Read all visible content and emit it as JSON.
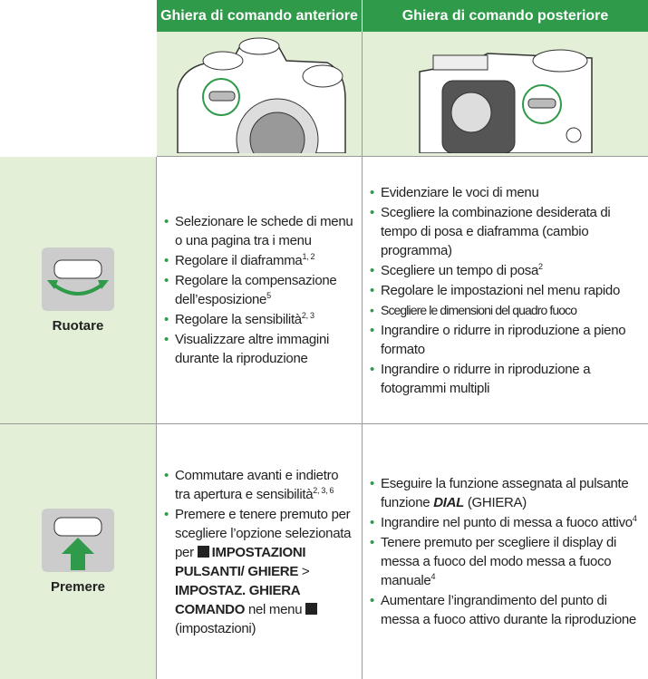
{
  "header": {
    "col1": "Ghiera di comando anteriore",
    "col2": "Ghiera di comando posteriore"
  },
  "rows": [
    {
      "label": "Ruotare",
      "col1": [
        [
          "Selezionare le schede di menu o una pagina tra i menu"
        ],
        [
          "Regolare il diaframma",
          "1, 2"
        ],
        [
          "Regolare la compensazione dell’esposizione",
          "5"
        ],
        [
          "Regolare la sensibilità",
          "2, 3"
        ],
        [
          "Visualizzare altre immagini durante la riproduzione"
        ]
      ],
      "col2": [
        [
          "Evidenziare le voci di menu"
        ],
        [
          "Scegliere la combinazione desiderata di tempo di posa e diaframma (cambio programma)"
        ],
        [
          "Scegliere un tempo di posa",
          "2"
        ],
        [
          "Regolare le impostazioni nel menu rapido"
        ],
        [
          "Scegliere le dimensioni del quadro fuoco"
        ],
        [
          "Ingrandire o ridurre in riproduzione a pieno formato"
        ],
        [
          "Ingrandire o ridurre in riproduzione a fotogrammi multipli"
        ]
      ]
    },
    {
      "label": "Premere",
      "col1": [
        [
          "Commutare avanti e indietro tra apertura e sensibilità",
          "2, 3, 6"
        ],
        [
          "Premere e tenere premuto per scegliere l’opzione selezionata per",
          "IMPOSTAZIONI PULSANTI/ GHIERE",
          ">",
          "IMPOSTAZ. GHIERA COMANDO",
          "nel menu",
          "(impostazioni)"
        ]
      ],
      "col2": [
        [
          "Eseguire la funzione assegnata al pulsante funzione",
          "DIAL",
          "(GHIERA)"
        ],
        [
          "Ingrandire nel punto di messa a fuoco attivo",
          "4"
        ],
        [
          "Tenere premuto per scegliere il display di messa a fuoco del modo messa a fuoco manuale",
          "4"
        ],
        [
          "Aumentare l’ingrandimento del punto di messa a fuoco attivo durante la riproduzione"
        ]
      ]
    }
  ]
}
